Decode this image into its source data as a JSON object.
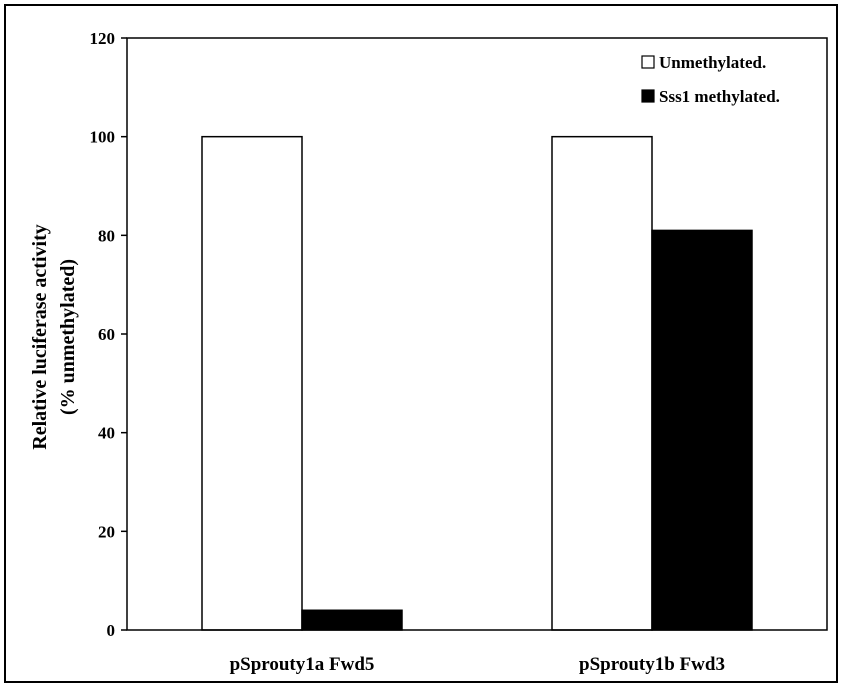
{
  "chart_data": {
    "type": "bar",
    "categories": [
      "pSprouty1a Fwd5",
      "pSprouty1b Fwd3"
    ],
    "series": [
      {
        "name": "Unmethylated.",
        "values": [
          100,
          100
        ],
        "color": "#ffffff"
      },
      {
        "name": "Sss1 methylated.",
        "values": [
          4,
          81
        ],
        "color": "#000000"
      }
    ],
    "title": "",
    "xlabel": "",
    "ylabel_lines": [
      "Relative luciferase activity",
      "(% unmethylated)"
    ],
    "ylim": [
      0,
      120
    ],
    "yticks": [
      0,
      20,
      40,
      60,
      80,
      100,
      120
    ],
    "grid": false,
    "legend_position": "top-right"
  }
}
